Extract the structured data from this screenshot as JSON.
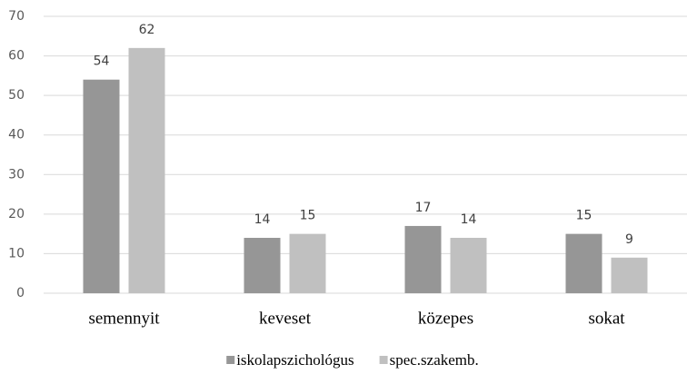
{
  "chart_data": {
    "type": "bar",
    "categories": [
      "semennyit",
      "keveset",
      "közepes",
      "sokat"
    ],
    "series": [
      {
        "name": "iskolapszichológus",
        "color": "#969696",
        "values": [
          54,
          14,
          17,
          15
        ]
      },
      {
        "name": "spec.szakemb.",
        "color": "#c0c0c0",
        "values": [
          62,
          15,
          14,
          9
        ]
      }
    ],
    "ylim": [
      0,
      70
    ],
    "yticks": [
      0,
      10,
      20,
      30,
      40,
      50,
      60,
      70
    ],
    "grid": true,
    "legend": "bottom"
  }
}
